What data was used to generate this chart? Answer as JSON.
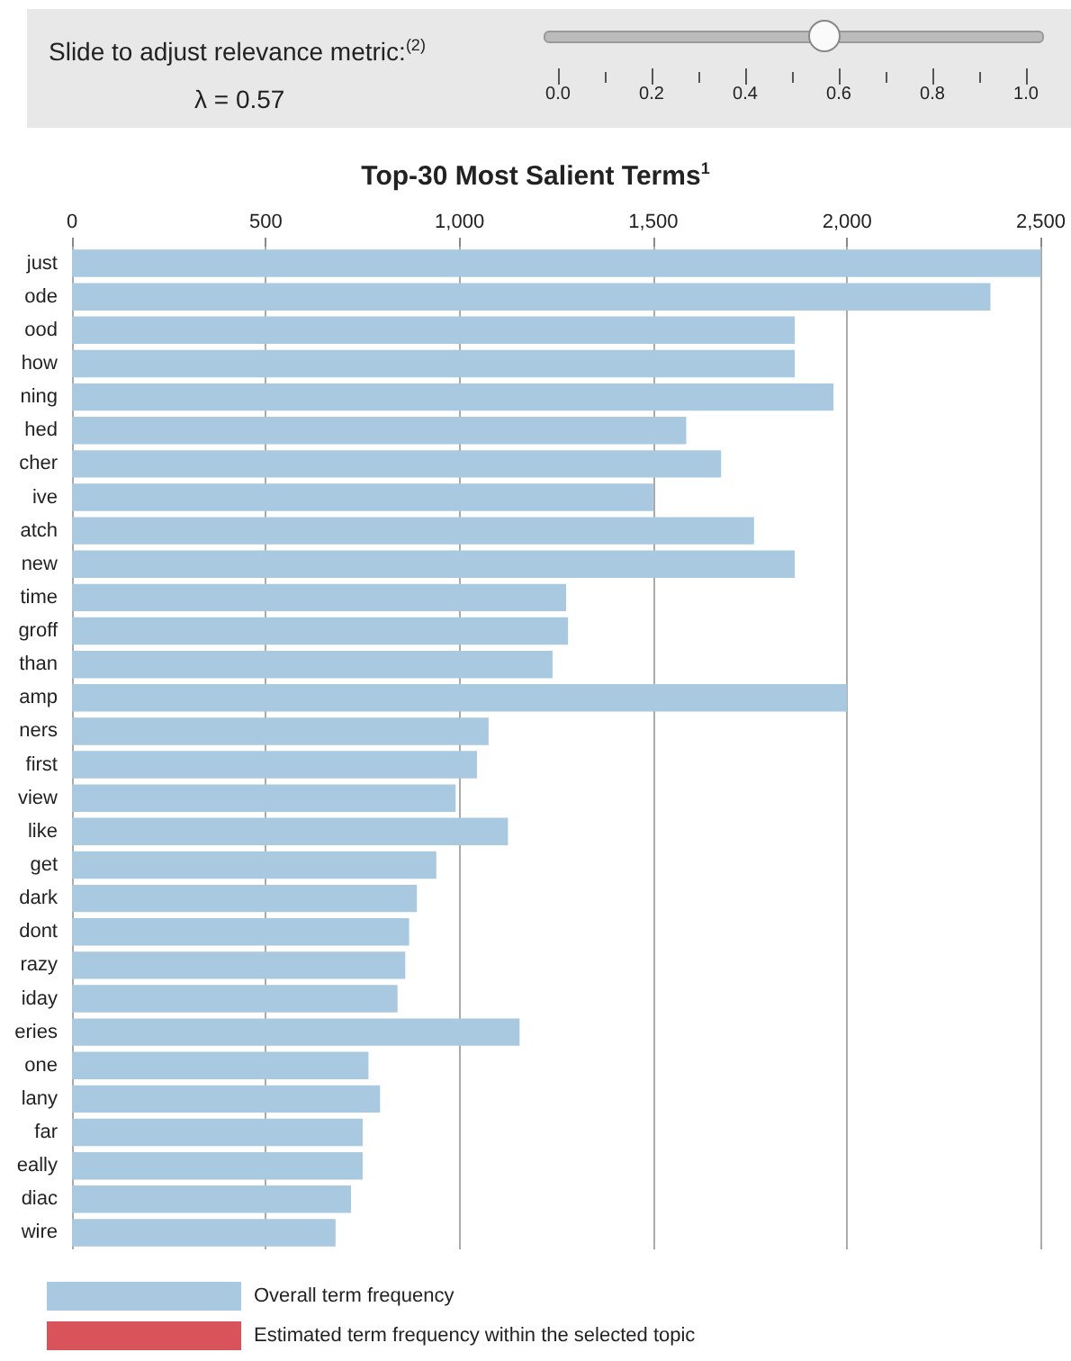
{
  "chart_data": {
    "type": "bar",
    "orientation": "horizontal",
    "title": "Top-30 Most Salient Terms$^{1}$",
    "categories": [
      "just",
      "ode",
      "ood",
      "how",
      "ning",
      "hed",
      "cher",
      "ive",
      "atch",
      "new",
      "time",
      "groff",
      "than",
      "amp",
      "ners",
      "first",
      "view",
      "like",
      "get",
      "dark",
      "dont",
      "razy",
      "iday",
      "eries",
      "one",
      "lany",
      "far",
      "eally",
      "diac",
      "wire"
    ],
    "series": [
      {
        "name": "Overall term frequency",
        "color": "#a8c9e0",
        "values": [
          2500,
          2370,
          1865,
          1865,
          1965,
          1585,
          1675,
          1500,
          1760,
          1865,
          1275,
          1280,
          1240,
          2000,
          1075,
          1045,
          990,
          1125,
          940,
          890,
          870,
          860,
          840,
          1155,
          765,
          795,
          750,
          750,
          720,
          680
        ]
      }
    ],
    "xlim": [
      0,
      2500
    ],
    "xticks": [
      0,
      500,
      {
        "value": 1000,
        "label": "1,000"
      },
      {
        "value": 1500,
        "label": "1,500"
      },
      {
        "value": 2000,
        "label": "2,000"
      },
      {
        "value": 2500,
        "label": "2,500"
      }
    ],
    "grid": "x",
    "legend": "bottom left",
    "annotations": [
      "Slide to adjust relevance metric:$^{(2)}$",
      "λ = 0.57",
      "0.0",
      "0.2",
      "0.4",
      "0.6",
      "0.8",
      "1.0",
      "Estimated term frequency within the selected topic"
    ]
  }
}
